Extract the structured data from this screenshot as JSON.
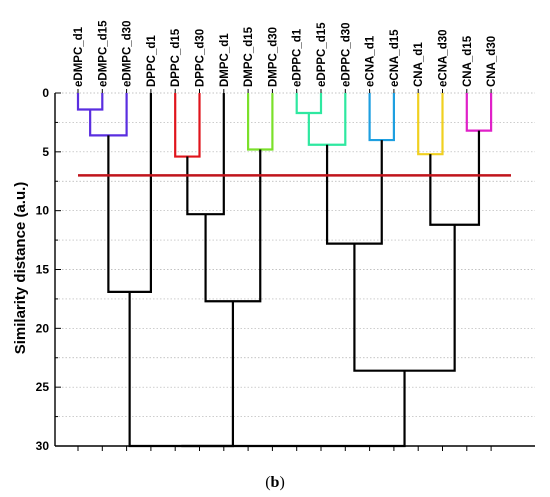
{
  "chart_data": {
    "type": "dendrogram",
    "ylabel": "Similarity distance (a.u.)",
    "ylim": [
      0,
      30
    ],
    "yticks": [
      0,
      5,
      10,
      15,
      20,
      25,
      30
    ],
    "grid": "horizontal dotted",
    "orientation": "root at bottom, leaves at top",
    "leaves": [
      "eDMPC_d1",
      "eDMPC_d15",
      "eDMPC_d30",
      "DPPC_d1",
      "DPPC_d15",
      "DPPC_d30",
      "DMPC_d1",
      "DMPC_d15",
      "DMPC_d30",
      "eDPPC_d1",
      "eDPPC_d15",
      "eDPPC_d30",
      "eCNA_d1",
      "eCNA_d15",
      "CNA_d1",
      "eCNA_d30",
      "CNA_d15",
      "CNA_d30"
    ],
    "cut_line": {
      "distance": 7.0,
      "color": "#c0141c"
    },
    "merges": [
      {
        "id": "m0",
        "left": "eDMPC_d1",
        "right": "eDMPC_d15",
        "distance": 1.4,
        "color": "#5a2ee0"
      },
      {
        "id": "m1",
        "left": "m0",
        "right": "eDMPC_d30",
        "distance": 3.6,
        "color": "#5a2ee0"
      },
      {
        "id": "m2",
        "left": "m1",
        "right": "DPPC_d1",
        "distance": 16.9,
        "color": "#000000"
      },
      {
        "id": "m3",
        "left": "DPPC_d15",
        "right": "DPPC_d30",
        "distance": 5.4,
        "color": "#e0141c"
      },
      {
        "id": "m4",
        "left": "m3",
        "right": "DMPC_d1",
        "distance": 10.3,
        "color": "#000000"
      },
      {
        "id": "m5",
        "left": "DMPC_d15",
        "right": "DMPC_d30",
        "distance": 4.8,
        "color": "#7be02a"
      },
      {
        "id": "m6",
        "left": "m4",
        "right": "m5",
        "distance": 17.7,
        "color": "#000000"
      },
      {
        "id": "m7",
        "left": "eDPPC_d1",
        "right": "eDPPC_d15",
        "distance": 1.7,
        "color": "#2ee8a0"
      },
      {
        "id": "m8",
        "left": "m7",
        "right": "eDPPC_d30",
        "distance": 4.4,
        "color": "#2ee8a0"
      },
      {
        "id": "m9",
        "left": "eCNA_d1",
        "right": "eCNA_d15",
        "distance": 4.0,
        "color": "#1e9fe0"
      },
      {
        "id": "m10",
        "left": "m8",
        "right": "m9",
        "distance": 12.8,
        "color": "#000000"
      },
      {
        "id": "m11",
        "left": "CNA_d1",
        "right": "eCNA_d30",
        "distance": 5.2,
        "color": "#f0d020"
      },
      {
        "id": "m12",
        "left": "CNA_d15",
        "right": "CNA_d30",
        "distance": 3.2,
        "color": "#e020c8"
      },
      {
        "id": "m13",
        "left": "m11",
        "right": "m12",
        "distance": 11.2,
        "color": "#000000"
      },
      {
        "id": "m14",
        "left": "m10",
        "right": "m13",
        "distance": 23.6,
        "color": "#000000"
      },
      {
        "id": "m15",
        "left": "m2",
        "right": "m6",
        "distance": 30.0,
        "color": "#000000"
      },
      {
        "id": "m16",
        "left": "m14",
        "right": "m15",
        "distance": 30.0,
        "color": "#000000"
      }
    ]
  },
  "caption": {
    "open": "(",
    "letter": "b",
    "close": ")"
  }
}
